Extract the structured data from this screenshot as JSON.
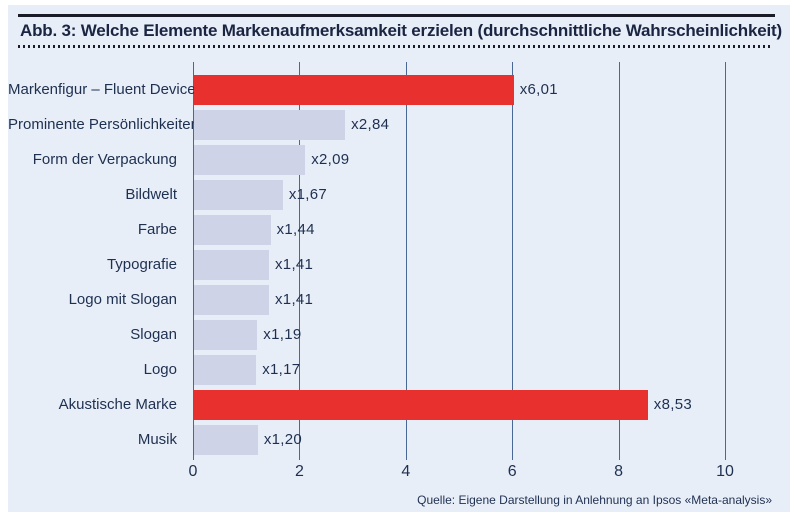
{
  "header": {
    "title": "Abb. 3: Welche Elemente Markenaufmerksamkeit erzielen (durchschnittliche Wahrscheinlichkeit)"
  },
  "footer": {
    "source": "Quelle: Eigene Darstellung in Anlehnung an Ipsos «Meta-analysis»"
  },
  "colors": {
    "panel_bg": "#e8eef8",
    "highlight_bar": "#e8302e",
    "default_bar": "#cfd3e7",
    "text": "#1e3050",
    "gridline": "#4a6896",
    "rule": "#1a1d28"
  },
  "chart_data": {
    "type": "bar",
    "orientation": "horizontal",
    "title": "Abb. 3: Welche Elemente Markenaufmerksamkeit erzielen (durchschnittliche Wahrscheinlichkeit)",
    "categories": [
      "Markenfigur – Fluent Device",
      "Prominente Persönlichkeiten",
      "Form der Verpackung",
      "Bildwelt",
      "Farbe",
      "Typografie",
      "Logo mit Slogan",
      "Slogan",
      "Logo",
      "Akustische Marke",
      "Musik"
    ],
    "values": [
      6.01,
      2.84,
      2.09,
      1.67,
      1.44,
      1.41,
      1.41,
      1.19,
      1.17,
      8.53,
      1.2
    ],
    "value_labels": [
      "x6,01",
      "x2,84",
      "x2,09",
      "x1,67",
      "x1,44",
      "x1,41",
      "x1,41",
      "x1,19",
      "x1,17",
      "x8,53",
      "x1,20"
    ],
    "highlighted": [
      true,
      false,
      false,
      false,
      false,
      false,
      false,
      false,
      false,
      true,
      false
    ],
    "x_ticks": [
      0,
      2,
      4,
      6,
      8,
      10
    ],
    "x_tick_labels": [
      "0",
      "2",
      "4",
      "6",
      "8",
      "10"
    ],
    "xlim": [
      0,
      10.7
    ],
    "grid": true,
    "legend": null,
    "source": "Quelle: Eigene Darstellung in Anlehnung an Ipsos «Meta-analysis»"
  }
}
